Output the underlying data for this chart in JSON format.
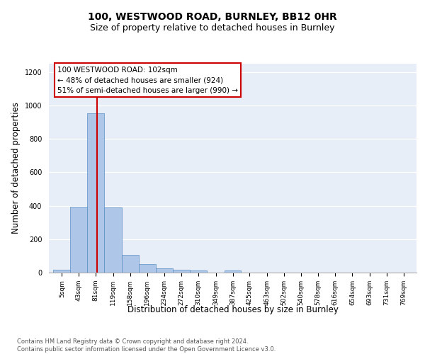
{
  "title1": "100, WESTWOOD ROAD, BURNLEY, BB12 0HR",
  "title2": "Size of property relative to detached houses in Burnley",
  "xlabel": "Distribution of detached houses by size in Burnley",
  "ylabel": "Number of detached properties",
  "bin_labels": [
    "5sqm",
    "43sqm",
    "81sqm",
    "119sqm",
    "158sqm",
    "196sqm",
    "234sqm",
    "272sqm",
    "310sqm",
    "349sqm",
    "387sqm",
    "425sqm",
    "463sqm",
    "502sqm",
    "540sqm",
    "578sqm",
    "616sqm",
    "654sqm",
    "693sqm",
    "731sqm",
    "769sqm"
  ],
  "bin_edges": [
    5,
    43,
    81,
    119,
    158,
    196,
    234,
    272,
    310,
    349,
    387,
    425,
    463,
    502,
    540,
    578,
    616,
    654,
    693,
    731,
    769,
    807
  ],
  "bar_heights": [
    15,
    395,
    955,
    390,
    105,
    50,
    25,
    15,
    12,
    0,
    12,
    0,
    0,
    0,
    0,
    0,
    0,
    0,
    0,
    0,
    0
  ],
  "bar_color": "#aec6e8",
  "bar_edge_color": "#5a8fc2",
  "vline_x": 102,
  "vline_color": "#cc0000",
  "annotation_text": "100 WESTWOOD ROAD: 102sqm\n← 48% of detached houses are smaller (924)\n51% of semi-detached houses are larger (990) →",
  "annotation_box_edgecolor": "#cc0000",
  "ylim": [
    0,
    1250
  ],
  "yticks": [
    0,
    200,
    400,
    600,
    800,
    1000,
    1200
  ],
  "background_color": "#e8eef7",
  "footer_text": "Contains HM Land Registry data © Crown copyright and database right 2024.\nContains public sector information licensed under the Open Government Licence v3.0.",
  "title1_fontsize": 10,
  "title2_fontsize": 9,
  "xlabel_fontsize": 8.5,
  "ylabel_fontsize": 8.5,
  "footer_fontsize": 6.0,
  "tick_fontsize": 6.5,
  "annot_fontsize": 7.5
}
